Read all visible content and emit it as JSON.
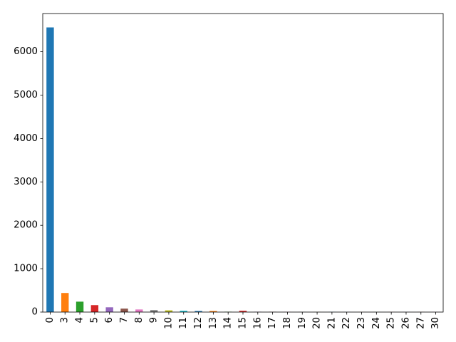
{
  "chart_data": {
    "type": "bar",
    "title": "",
    "xlabel": "",
    "ylabel": "",
    "categories": [
      "0",
      "3",
      "4",
      "5",
      "6",
      "7",
      "8",
      "9",
      "10",
      "11",
      "12",
      "13",
      "14",
      "15",
      "16",
      "17",
      "18",
      "19",
      "20",
      "21",
      "22",
      "23",
      "24",
      "25",
      "26",
      "27",
      "30"
    ],
    "values": [
      6560,
      440,
      240,
      160,
      110,
      80,
      60,
      45,
      40,
      30,
      25,
      25,
      8,
      30,
      8,
      6,
      4,
      4,
      3,
      3,
      2,
      2,
      2,
      2,
      2,
      3,
      2
    ],
    "colors": [
      "#1f77b4",
      "#ff7f0e",
      "#2ca02c",
      "#d62728",
      "#9467bd",
      "#8c564b",
      "#e377c2",
      "#7f7f7f",
      "#bcbd22",
      "#17becf"
    ],
    "ylim": [
      0,
      6880
    ],
    "yticks": [
      0,
      1000,
      2000,
      3000,
      4000,
      5000,
      6000
    ],
    "grid": false,
    "legend": "none"
  }
}
